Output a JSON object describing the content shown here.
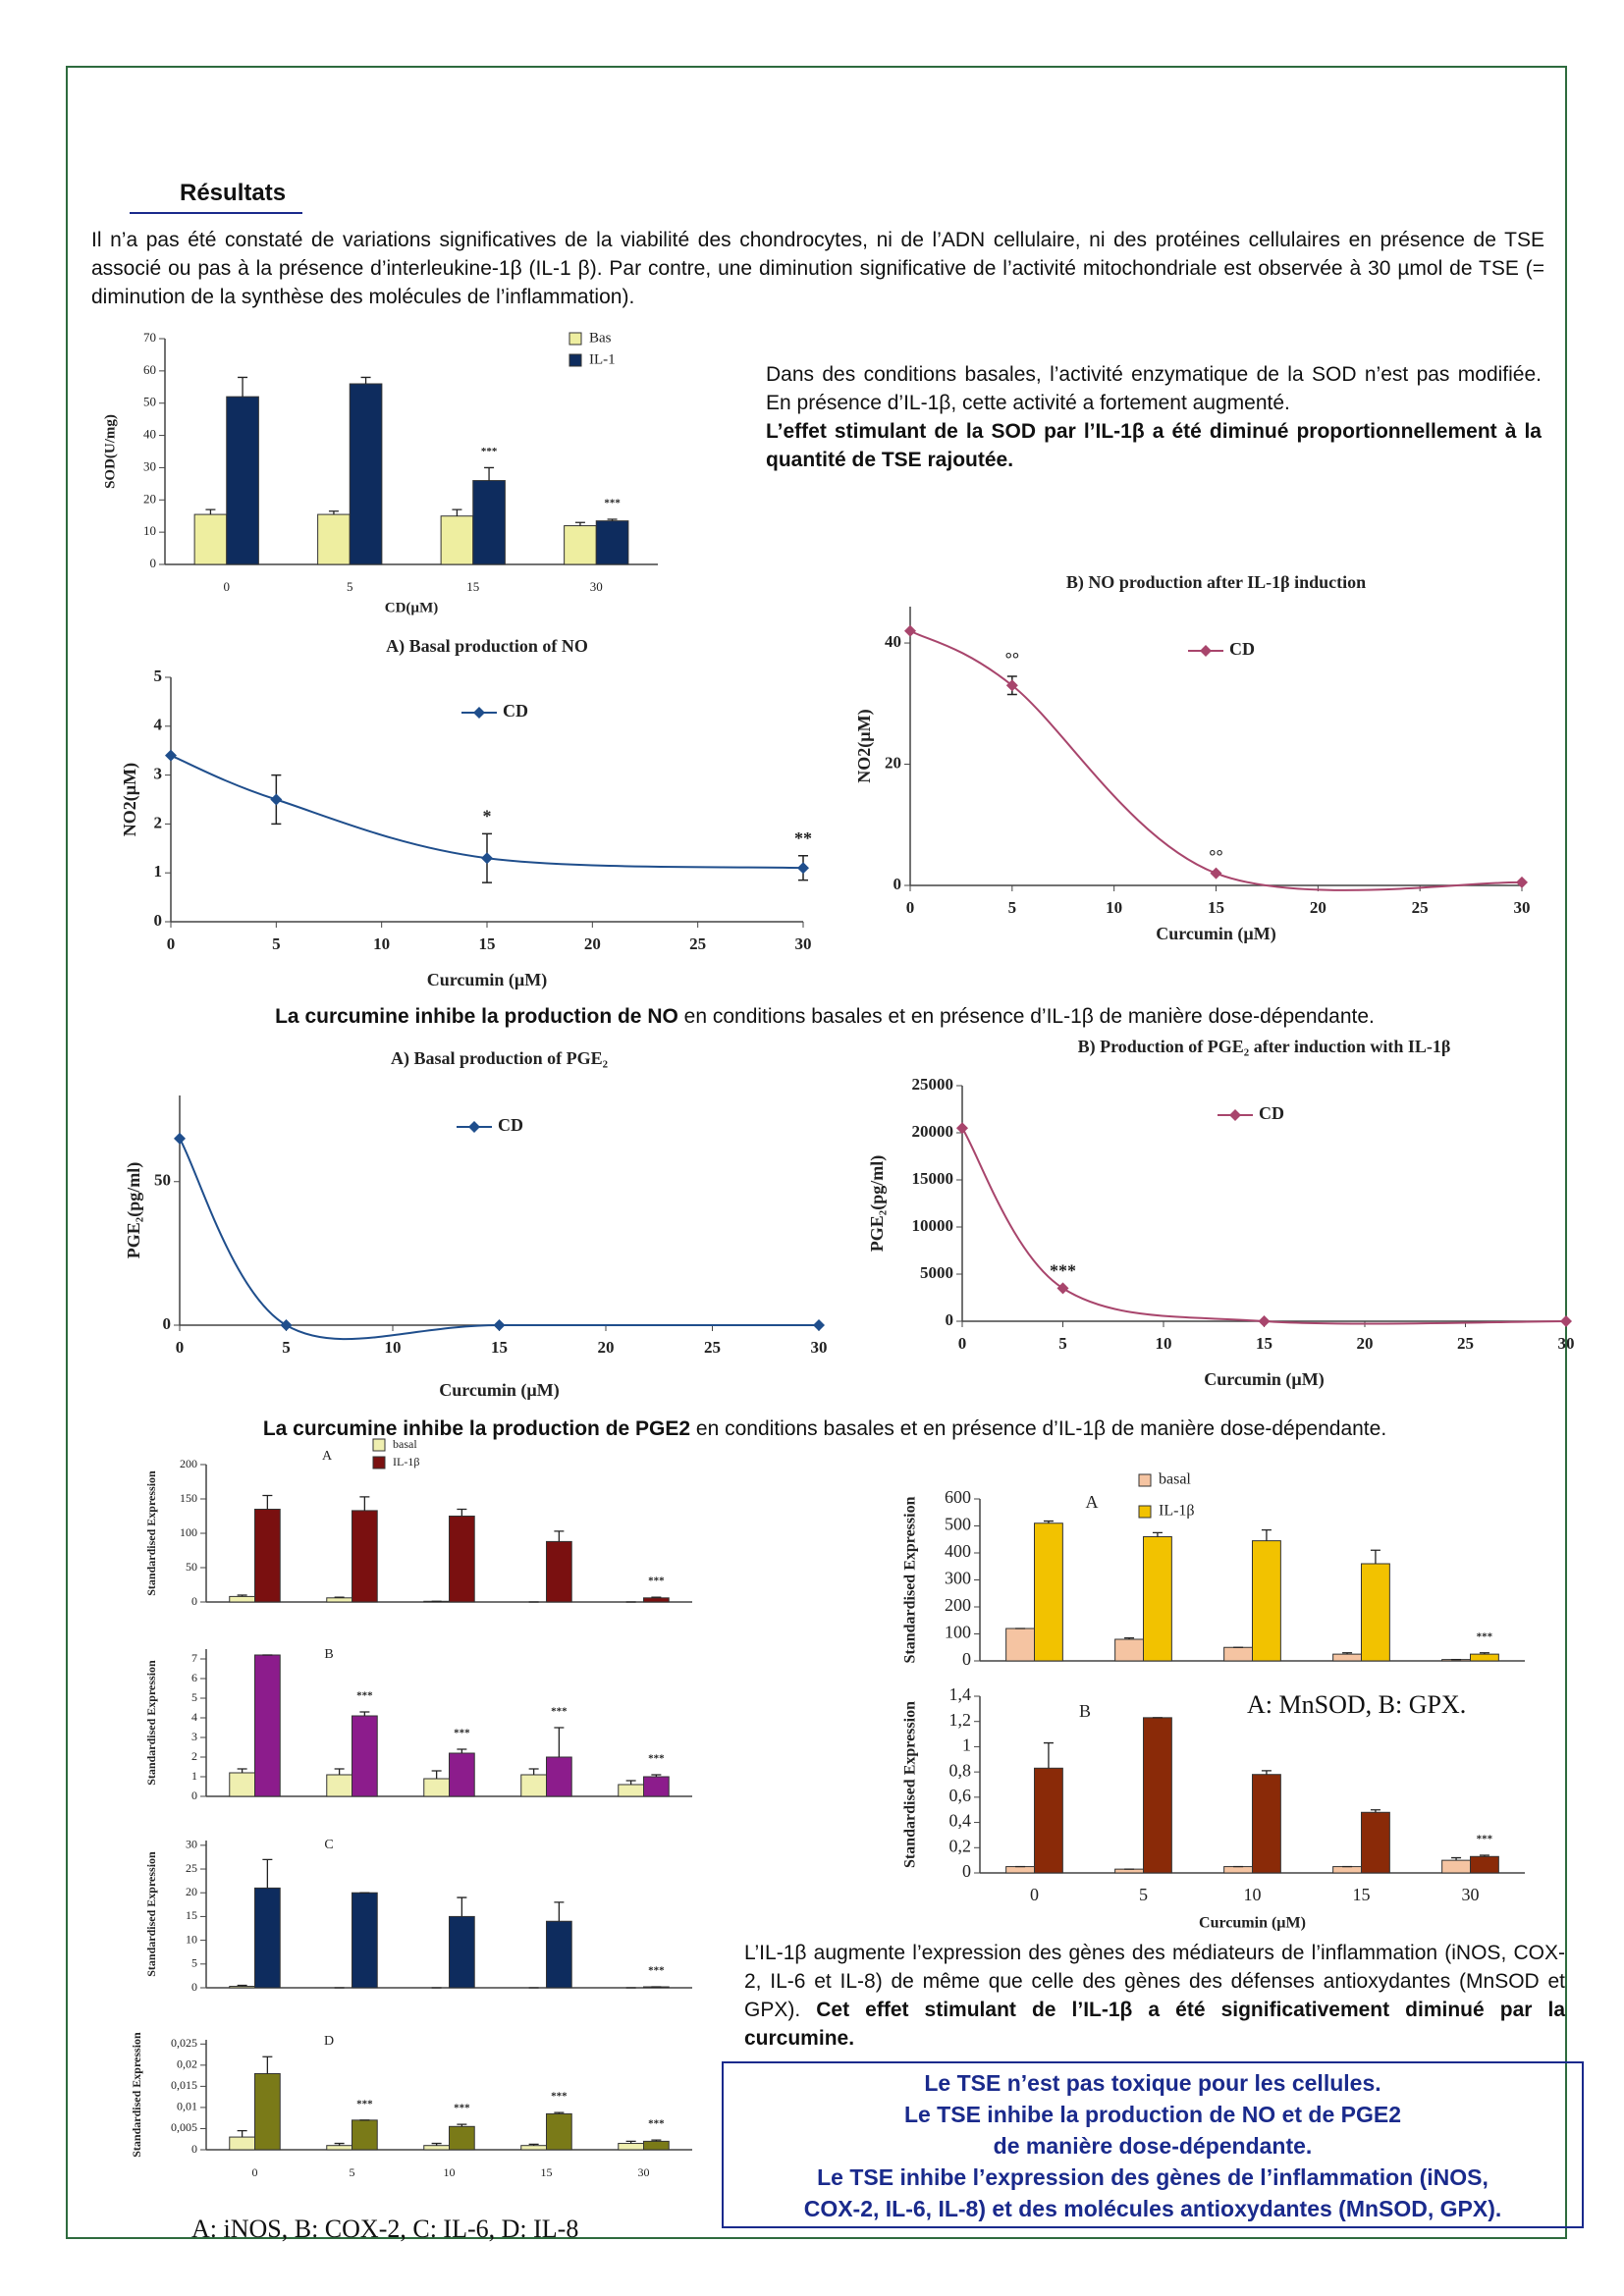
{
  "heading": "Résultats",
  "intro": "Il n’a pas été constaté de variations significatives de la viabilité des chondrocytes, ni de l’ADN cellulaire, ni des protéines cellulaires en présence de TSE associé ou pas à la présence d’interleukine-1β (IL-1 β). Par contre, une diminution significative de l’activité mitochondriale est observée à 30 µmol de TSE (= diminution de la synthèse des molécules de l’inflammation).",
  "sod_text": {
    "normal": "Dans des conditions basales, l’activité enzymatique de la SOD n’est pas modifiée. En présence d’IL-1β, cette activité a fortement augmenté.",
    "bold": "L’effet stimulant de la SOD par l’IL-1β a été diminué proportionnellement à la quantité de TSE rajoutée."
  },
  "no_caption": {
    "bold": "La curcumine inhibe la production de NO",
    "normal": " en conditions basales et en présence d’IL-1β de manière dose-dépendante."
  },
  "pge_caption": {
    "bold": "La curcumine inhibe la production de PGE2",
    "normal": " en conditions basales et en présence d’IL-1β de manière dose-dépendante."
  },
  "gene_captions": [
    "A: iNOS, B: COX-2, C: IL-6, D: IL-8",
    "A: MnSOD, B: GPX."
  ],
  "gene_text": {
    "normal": "L’IL-1β augmente l’expression des gènes des médiateurs de l’inflammation (iNOS, COX-2, IL-6 et IL-8) de même que celle des gènes des défenses antioxydantes (MnSOD et GPX). ",
    "bold": "Cet effet stimulant de l’IL-1β a été significativement diminué par la curcumine."
  },
  "conclusion": [
    "Le TSE n’est pas toxique pour les cellules.",
    "Le TSE inhibe la production de NO et de PGE2",
    "de manière dose-dépendante.",
    "Le TSE inhibe l’expression des gènes de l’inflammation (iNOS,",
    "COX-2, IL-6, IL-8) et des molécules antioxydantes (MnSOD, GPX)."
  ],
  "chart_data": [
    {
      "type": "bar",
      "ylabel": "SOD(U/mg)",
      "xlabel": "CD(µM)",
      "categories": [
        "0",
        "5",
        "15",
        "30"
      ],
      "ylim": [
        0,
        70
      ],
      "yticks": [
        0,
        10,
        20,
        30,
        40,
        50,
        60,
        70
      ],
      "series": [
        {
          "name": "Bas",
          "color": "#eeeea0",
          "values": [
            15.5,
            15.5,
            15,
            12
          ],
          "errors": [
            1.5,
            1,
            2,
            1
          ]
        },
        {
          "name": "IL-1",
          "color": "#0e2c5e",
          "values": [
            52,
            56,
            26,
            13.5
          ],
          "errors": [
            6,
            2,
            4,
            0.5
          ]
        }
      ],
      "annotations": [
        {
          "text": "***",
          "x": 2
        },
        {
          "text": "***",
          "x": 3
        }
      ]
    },
    {
      "type": "line",
      "title": "A) Basal production of NO",
      "ylabel": "NO2(µM)",
      "xlabel": "Curcumin (µM)",
      "x": [
        0,
        5,
        15,
        30
      ],
      "xlim": [
        0,
        30
      ],
      "xticks": [
        0,
        5,
        10,
        15,
        20,
        25,
        30
      ],
      "ylim": [
        0,
        5
      ],
      "yticks": [
        0,
        1,
        2,
        3,
        4,
        5
      ],
      "series": [
        {
          "name": "CD",
          "color": "#1f4e8c",
          "values": [
            3.4,
            2.5,
            1.3,
            1.1
          ],
          "errors": [
            0,
            0.5,
            0.5,
            0.25
          ]
        }
      ],
      "annotations": [
        {
          "text": "*",
          "x": 15
        },
        {
          "text": "**",
          "x": 30
        }
      ]
    },
    {
      "type": "line",
      "title": "B) NO production after IL-1β induction",
      "ylabel": "NO2(µM)",
      "xlabel": "Curcumin (µM)",
      "x": [
        0,
        5,
        15,
        30
      ],
      "xlim": [
        0,
        30
      ],
      "xticks": [
        0,
        5,
        10,
        15,
        20,
        25,
        30
      ],
      "ylim": [
        0,
        46
      ],
      "yticks": [
        0,
        20,
        40
      ],
      "series": [
        {
          "name": "CD",
          "color": "#a8456c",
          "values": [
            42,
            33,
            2,
            0.5
          ],
          "errors": [
            0,
            1.5,
            0,
            0
          ]
        }
      ],
      "annotations": [
        {
          "text": "°°",
          "x": 5
        },
        {
          "text": "°°",
          "x": 15
        }
      ]
    },
    {
      "type": "line",
      "title": "A) Basal production of PGE₂",
      "ylabel": "PGE₂(pg/ml)",
      "xlabel": "Curcumin (µM)",
      "x": [
        0,
        5,
        15,
        30
      ],
      "xlim": [
        0,
        30
      ],
      "xticks": [
        0,
        5,
        10,
        15,
        20,
        25,
        30
      ],
      "ylim": [
        0,
        80
      ],
      "yticks": [
        0,
        50
      ],
      "series": [
        {
          "name": "CD",
          "color": "#1f4e8c",
          "values": [
            65,
            0,
            0,
            0
          ]
        }
      ],
      "annotations": []
    },
    {
      "type": "line",
      "title": "B) Production of PGE₂ after induction with IL-1β",
      "ylabel": "PGE₂(pg/ml)",
      "xlabel": "Curcumin (µM)",
      "x": [
        0,
        5,
        15,
        30
      ],
      "xlim": [
        0,
        30
      ],
      "xticks": [
        0,
        5,
        10,
        15,
        20,
        25,
        30
      ],
      "ylim": [
        0,
        25000
      ],
      "yticks": [
        0,
        5000,
        10000,
        15000,
        20000,
        25000
      ],
      "series": [
        {
          "name": "CD",
          "color": "#a8456c",
          "values": [
            20500,
            3500,
            0,
            0
          ]
        }
      ],
      "annotations": [
        {
          "text": "***",
          "x": 5
        }
      ]
    },
    {
      "type": "bar",
      "title": "A",
      "ylabel": "Standardised Expression",
      "ylim": [
        0,
        200
      ],
      "yticks": [
        0,
        50,
        100,
        150,
        200
      ],
      "series": [
        {
          "name": "basal",
          "color": "#efefb0",
          "values": [
            8,
            6,
            1,
            0,
            0
          ],
          "errors": [
            2,
            1,
            0,
            0,
            0
          ]
        },
        {
          "name": "IL-1β",
          "color": "#7a1010",
          "values": [
            135,
            133,
            125,
            88,
            6
          ],
          "errors": [
            20,
            20,
            10,
            15,
            1
          ]
        }
      ],
      "annotations": [
        {
          "text": "***",
          "x": 4
        }
      ]
    },
    {
      "type": "bar",
      "title": "B",
      "ylabel": "Standardised Expression",
      "ylim": [
        0,
        7.5
      ],
      "yticks": [
        0,
        1,
        2,
        3,
        4,
        5,
        6,
        7
      ],
      "series": [
        {
          "color": "#efefb0",
          "values": [
            1.2,
            1.1,
            0.9,
            1.1,
            0.6
          ],
          "errors": [
            0.2,
            0.3,
            0.4,
            0.3,
            0.2
          ]
        },
        {
          "color": "#8c1c8c",
          "values": [
            7.2,
            4.1,
            2.2,
            2,
            1
          ],
          "errors": [
            0,
            0.2,
            0.2,
            1.5,
            0.1
          ]
        }
      ],
      "annotations": [
        {
          "text": "***",
          "x": 1
        },
        {
          "text": "***",
          "x": 2
        },
        {
          "text": "***",
          "x": 3
        },
        {
          "text": "***",
          "x": 4
        }
      ]
    },
    {
      "type": "bar",
      "title": "C",
      "ylabel": "Standardised Expression",
      "ylim": [
        0,
        31
      ],
      "yticks": [
        0,
        5,
        10,
        15,
        20,
        25,
        30
      ],
      "series": [
        {
          "color": "#efefb0",
          "values": [
            0.3,
            0,
            0,
            0,
            0
          ],
          "errors": [
            0.2,
            0,
            0,
            0,
            0
          ]
        },
        {
          "color": "#0e2c5e",
          "values": [
            21,
            20,
            15,
            14,
            0.2
          ],
          "errors": [
            6,
            0,
            4,
            4,
            0
          ]
        }
      ],
      "annotations": [
        {
          "text": "***",
          "x": 4
        }
      ]
    },
    {
      "type": "bar",
      "title": "D",
      "ylabel": "Standardised Expression",
      "categories": [
        "0",
        "5",
        "10",
        "15",
        "30"
      ],
      "ylim": [
        0,
        0.026
      ],
      "yticks": [
        0,
        {
          "value": 0.005,
          "label": "0,005"
        },
        {
          "value": 0.01,
          "label": "0,01"
        },
        {
          "value": 0.015,
          "label": "0,015"
        },
        {
          "value": 0.02,
          "label": "0,02"
        },
        {
          "value": 0.025,
          "label": "0,025"
        }
      ],
      "series": [
        {
          "color": "#efefb0",
          "values": [
            0.003,
            0.001,
            0.001,
            0.001,
            0.0015
          ],
          "errors": [
            0.0015,
            0.0005,
            0.0005,
            0.0003,
            0.0005
          ]
        },
        {
          "color": "#7a7a18",
          "values": [
            0.018,
            0.007,
            0.0055,
            0.0085,
            0.002
          ],
          "errors": [
            0.004,
            0,
            0.0005,
            0.0003,
            0.0003
          ]
        }
      ],
      "annotations": [
        {
          "text": "***",
          "x": 1
        },
        {
          "text": "***",
          "x": 2
        },
        {
          "text": "***",
          "x": 3
        },
        {
          "text": "***",
          "x": 4
        }
      ]
    },
    {
      "type": "bar",
      "title": "A",
      "ylabel": "Standardised Expression",
      "ylim": [
        0,
        600
      ],
      "yticks": [
        0,
        100,
        200,
        300,
        400,
        500,
        600
      ],
      "series": [
        {
          "name": "basal",
          "color": "#f5c4a2",
          "values": [
            120,
            80,
            50,
            25,
            5
          ],
          "errors": [
            0,
            5,
            0,
            5,
            0
          ]
        },
        {
          "name": "IL-1β",
          "color": "#f2c200",
          "values": [
            510,
            460,
            445,
            360,
            25
          ],
          "errors": [
            8,
            15,
            40,
            50,
            5
          ]
        }
      ],
      "annotations": [
        {
          "text": "***",
          "x": 4
        }
      ]
    },
    {
      "type": "bar",
      "title": "B",
      "ylabel": "Standardised Expression",
      "xlabel": "Curcumin (µM)",
      "categories": [
        "0",
        "5",
        "10",
        "15",
        "30"
      ],
      "ylim": [
        0,
        1.4
      ],
      "yticks": [
        0,
        {
          "value": 0.2,
          "label": "0,2"
        },
        {
          "value": 0.4,
          "label": "0,4"
        },
        {
          "value": 0.6,
          "label": "0,6"
        },
        {
          "value": 0.8,
          "label": "0,8"
        },
        1,
        {
          "value": 1.2,
          "label": "1,2"
        },
        {
          "value": 1.4,
          "label": "1,4"
        }
      ],
      "series": [
        {
          "color": "#f5c4a2",
          "values": [
            0.05,
            0.03,
            0.05,
            0.05,
            0.1
          ],
          "errors": [
            0,
            0,
            0,
            0,
            0.02
          ]
        },
        {
          "color": "#8a2a08",
          "values": [
            0.83,
            1.23,
            0.78,
            0.48,
            0.13
          ],
          "errors": [
            0.2,
            0,
            0.03,
            0.02,
            0.01
          ]
        }
      ],
      "annotations": [
        {
          "text": "***",
          "x": 4
        }
      ]
    }
  ]
}
